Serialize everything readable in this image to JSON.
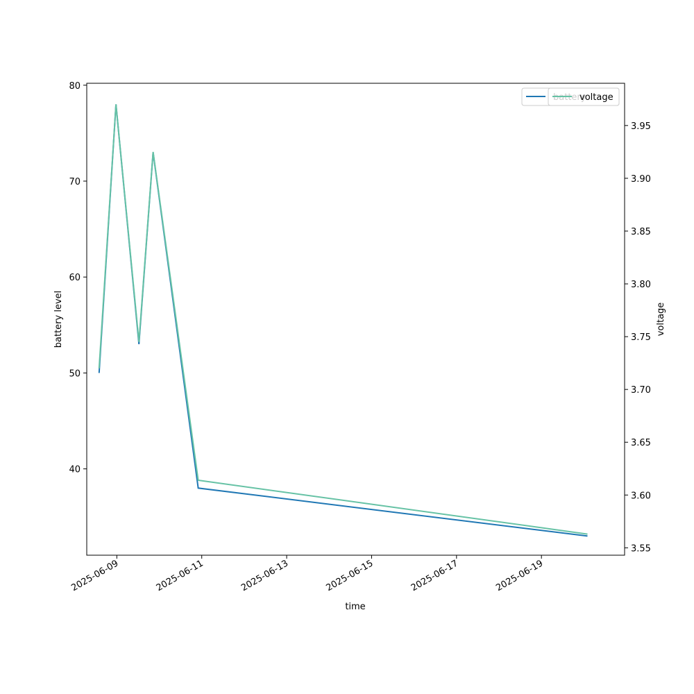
{
  "colors": {
    "battery": "#1f77b4",
    "voltage": "#66c2a5"
  },
  "chart_data": {
    "type": "line",
    "xlabel": "time",
    "ylabel_left": "battery level",
    "ylabel_right": "voltage",
    "x_ticks": [
      "2025-06-09",
      "2025-06-11",
      "2025-06-13",
      "2025-06-15",
      "2025-06-17",
      "2025-06-19"
    ],
    "x_range": [
      "2025-06-08 07:00",
      "2025-06-20 23:00"
    ],
    "y_left_range": [
      31,
      80.2
    ],
    "y_left_ticks": [
      40,
      50,
      60,
      70,
      80
    ],
    "y_right_range": [
      3.543,
      3.99
    ],
    "y_right_ticks": [
      3.55,
      3.6,
      3.65,
      3.7,
      3.75,
      3.8,
      3.85,
      3.9,
      3.95
    ],
    "grid": false,
    "legend_placement": "top-right",
    "series": [
      {
        "name": "battery",
        "axis": "left",
        "color": "#1f77b4",
        "x": [
          "2025-06-08 14:00",
          "2025-06-08 23:30",
          "2025-06-09 12:30",
          "2025-06-09 20:30",
          "2025-06-10 22:00",
          "2025-06-20 02:00"
        ],
        "y": [
          50,
          78,
          53,
          73,
          38,
          33
        ]
      },
      {
        "name": "voltage",
        "axis": "right",
        "color": "#66c2a5",
        "x": [
          "2025-06-08 14:00",
          "2025-06-08 23:30",
          "2025-06-09 12:30",
          "2025-06-09 20:30",
          "2025-06-10 22:00",
          "2025-06-20 02:00"
        ],
        "y": [
          3.72,
          3.97,
          3.745,
          3.925,
          3.614,
          3.563
        ]
      }
    ]
  }
}
